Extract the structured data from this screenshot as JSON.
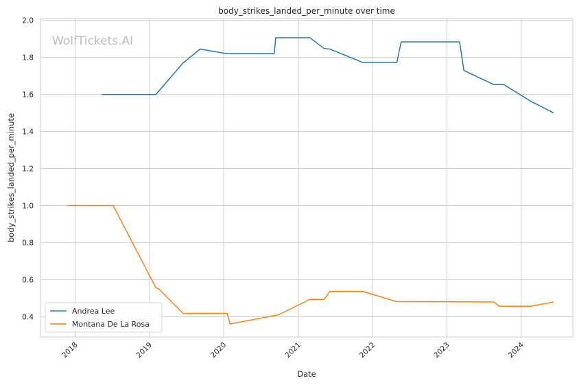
{
  "chart_data": {
    "type": "line",
    "title": "body_strikes_landed_per_minute over time",
    "xlabel": "Date",
    "ylabel": "body_strikes_landed_per_minute",
    "watermark": "WolfTickets.AI",
    "x_ticks": [
      "2018",
      "2019",
      "2020",
      "2021",
      "2022",
      "2023",
      "2024"
    ],
    "xlim": [
      "2017-07-15",
      "2024-09-10"
    ],
    "ylim": [
      0.29,
      2.01
    ],
    "y_ticks": [
      "0.4",
      "0.6",
      "0.8",
      "1.0",
      "1.2",
      "1.4",
      "1.6",
      "1.8",
      "2.0"
    ],
    "grid": true,
    "legend_position": "lower-left",
    "series": [
      {
        "name": "Andrea Lee",
        "color": "#1f77b4",
        "points": [
          [
            "2018-05-12",
            1.6
          ],
          [
            "2019-02-02",
            1.6
          ],
          [
            "2019-06-15",
            1.77
          ],
          [
            "2019-09-07",
            1.845
          ],
          [
            "2020-01-18",
            1.82
          ],
          [
            "2020-09-05",
            1.82
          ],
          [
            "2020-09-12",
            1.906
          ],
          [
            "2021-02-27",
            1.906
          ],
          [
            "2021-05-08",
            1.848
          ],
          [
            "2021-06-05",
            1.845
          ],
          [
            "2021-11-13",
            1.773
          ],
          [
            "2022-04-30",
            1.773
          ],
          [
            "2022-05-21",
            1.884
          ],
          [
            "2023-03-04",
            1.884
          ],
          [
            "2023-03-25",
            1.73
          ],
          [
            "2023-08-19",
            1.653
          ],
          [
            "2023-10-07",
            1.653
          ],
          [
            "2024-02-17",
            1.563
          ],
          [
            "2024-06-08",
            1.5
          ]
        ]
      },
      {
        "name": "Montana De La Rosa",
        "color": "#ff7f0e",
        "points": [
          [
            "2017-11-25",
            1.0
          ],
          [
            "2018-07-07",
            1.0
          ],
          [
            "2019-02-02",
            0.555
          ],
          [
            "2019-02-16",
            0.55
          ],
          [
            "2019-06-15",
            0.418
          ],
          [
            "2020-01-18",
            0.418
          ],
          [
            "2020-02-01",
            0.36
          ],
          [
            "2020-09-26",
            0.41
          ],
          [
            "2021-02-27",
            0.493
          ],
          [
            "2021-05-08",
            0.493
          ],
          [
            "2021-06-05",
            0.536
          ],
          [
            "2021-11-13",
            0.536
          ],
          [
            "2022-04-30",
            0.481
          ],
          [
            "2023-08-19",
            0.479
          ],
          [
            "2023-09-16",
            0.456
          ],
          [
            "2024-02-17",
            0.456
          ],
          [
            "2024-06-08",
            0.479
          ]
        ]
      }
    ]
  }
}
